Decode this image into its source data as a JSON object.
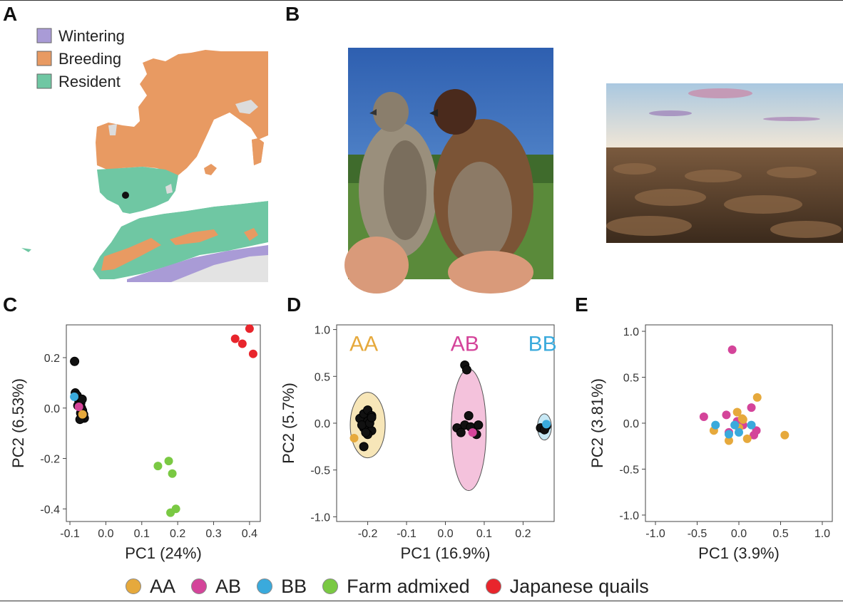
{
  "panels": {
    "a": "A",
    "b": "B",
    "c": "C",
    "d": "D",
    "e": "E"
  },
  "map_legend": [
    {
      "label": "Wintering",
      "color": "#a99bd6"
    },
    {
      "label": "Breeding",
      "color": "#e89a62"
    },
    {
      "label": "Resident",
      "color": "#6fc7a3"
    }
  ],
  "colors": {
    "AA": "#e6a93c",
    "AB": "#d4449a",
    "BB": "#3aaadc",
    "farm": "#7ac943",
    "japanese": "#e8252c",
    "sample": "#111111"
  },
  "bottom_legend": [
    {
      "label": "AA",
      "color": "#e6a93c"
    },
    {
      "label": "AB",
      "color": "#d4449a"
    },
    {
      "label": "BB",
      "color": "#3aaadc"
    },
    {
      "label": "Farm admixed",
      "color": "#7ac943"
    },
    {
      "label": "Japanese quails",
      "color": "#e8252c"
    }
  ],
  "chart_data": [
    {
      "panel": "C",
      "type": "scatter",
      "xlabel": "PC1 (24%)",
      "ylabel": "PC2 (6.53%)",
      "xlim": [
        -0.11,
        0.43
      ],
      "ylim": [
        -0.45,
        0.33
      ],
      "xticks": [
        -0.1,
        0.0,
        0.1,
        0.2,
        0.3,
        0.4
      ],
      "xtick_labels": [
        "-0.1",
        "0.0",
        "0.1",
        "0.2",
        "0.3",
        "0.4"
      ],
      "yticks": [
        0.2,
        0.0,
        -0.2,
        -0.4
      ],
      "ytick_labels": [
        "0.2",
        "0.0",
        "-0.2",
        "-0.4"
      ],
      "series": [
        {
          "group": "sample",
          "points": [
            [
              -0.087,
              0.185
            ],
            [
              -0.085,
              0.06
            ],
            [
              -0.08,
              0.05
            ],
            [
              -0.075,
              0.03
            ],
            [
              -0.07,
              0.02
            ],
            [
              -0.068,
              0.0
            ],
            [
              -0.065,
              -0.01
            ],
            [
              -0.07,
              -0.02
            ],
            [
              -0.065,
              -0.03
            ],
            [
              -0.06,
              -0.04
            ],
            [
              -0.072,
              -0.045
            ],
            [
              -0.062,
              -0.025
            ],
            [
              -0.078,
              0.01
            ],
            [
              -0.066,
              0.035
            ]
          ]
        },
        {
          "group": "BB",
          "points": [
            [
              -0.088,
              0.045
            ]
          ]
        },
        {
          "group": "AB",
          "points": [
            [
              -0.075,
              0.005
            ]
          ]
        },
        {
          "group": "AA",
          "points": [
            [
              -0.065,
              -0.025
            ]
          ]
        },
        {
          "group": "farm",
          "points": [
            [
              0.145,
              -0.23
            ],
            [
              0.175,
              -0.21
            ],
            [
              0.185,
              -0.26
            ],
            [
              0.195,
              -0.4
            ],
            [
              0.18,
              -0.415
            ]
          ]
        },
        {
          "group": "japanese",
          "points": [
            [
              0.36,
              0.275
            ],
            [
              0.38,
              0.255
            ],
            [
              0.4,
              0.315
            ],
            [
              0.41,
              0.215
            ]
          ]
        }
      ]
    },
    {
      "panel": "D",
      "type": "scatter",
      "xlabel": "PC1 (16.9%)",
      "ylabel": "PC2 (5.7%)",
      "xlim": [
        -0.28,
        0.28
      ],
      "ylim": [
        -1.05,
        1.05
      ],
      "xticks": [
        -0.2,
        -0.1,
        0.0,
        0.1,
        0.2
      ],
      "xtick_labels": [
        "-0.2",
        "-0.1",
        "0.0",
        "0.1",
        "0.2"
      ],
      "yticks": [
        1.0,
        0.5,
        0.0,
        -0.5,
        -1.0
      ],
      "ytick_labels": [
        "1.0",
        "0.5",
        "0.0",
        "-0.5",
        "-1.0"
      ],
      "group_labels": [
        {
          "text": "AA",
          "group": "AA",
          "x": -0.21,
          "y": 0.85
        },
        {
          "text": "AB",
          "group": "AB",
          "x": 0.05,
          "y": 0.85
        },
        {
          "text": "BB",
          "group": "BB",
          "x": 0.25,
          "y": 0.85
        }
      ],
      "ellipses": [
        {
          "group": "AA",
          "cx": -0.2,
          "cy": -0.02,
          "rx": 0.045,
          "ry": 0.35
        },
        {
          "group": "AB",
          "cx": 0.06,
          "cy": -0.07,
          "rx": 0.045,
          "ry": 0.65
        },
        {
          "group": "BB",
          "cx": 0.255,
          "cy": -0.04,
          "rx": 0.018,
          "ry": 0.14
        }
      ],
      "series": [
        {
          "group": "sample",
          "points": [
            [
              -0.22,
              0.05
            ],
            [
              -0.21,
              0.1
            ],
            [
              -0.2,
              0.14
            ],
            [
              -0.19,
              0.08
            ],
            [
              -0.2,
              0.02
            ],
            [
              -0.21,
              -0.05
            ],
            [
              -0.19,
              -0.08
            ],
            [
              -0.2,
              -0.12
            ],
            [
              -0.215,
              -0.02
            ],
            [
              -0.195,
              0.0
            ],
            [
              -0.205,
              -0.1
            ],
            [
              -0.21,
              -0.25
            ],
            [
              -0.19,
              0.06
            ],
            [
              0.05,
              0.62
            ],
            [
              0.055,
              0.57
            ],
            [
              0.03,
              -0.05
            ],
            [
              0.05,
              -0.02
            ],
            [
              0.06,
              0.08
            ],
            [
              0.07,
              -0.06
            ],
            [
              0.08,
              -0.12
            ],
            [
              0.04,
              -0.1
            ],
            [
              0.065,
              -0.04
            ],
            [
              0.085,
              -0.02
            ],
            [
              0.245,
              -0.05
            ],
            [
              0.26,
              -0.03
            ],
            [
              0.255,
              -0.07
            ]
          ]
        },
        {
          "group": "AA",
          "points": [
            [
              -0.235,
              -0.16
            ]
          ]
        },
        {
          "group": "AB",
          "points": [
            [
              0.07,
              -0.1
            ]
          ]
        },
        {
          "group": "BB",
          "points": [
            [
              0.26,
              -0.01
            ]
          ]
        }
      ]
    },
    {
      "panel": "E",
      "type": "scatter",
      "xlabel": "PC1 (3.9%)",
      "ylabel": "PC2 (3.81%)",
      "xlim": [
        -1.12,
        1.12
      ],
      "ylim": [
        -1.07,
        1.07
      ],
      "xticks": [
        -1.0,
        -0.5,
        0.0,
        0.5,
        1.0
      ],
      "xtick_labels": [
        "-1.0",
        "-0.5",
        "0.0",
        "0.5",
        "1.0"
      ],
      "yticks": [
        1.0,
        0.5,
        0.0,
        -0.5,
        -1.0
      ],
      "ytick_labels": [
        "1.0",
        "0.5",
        "0.0",
        "-0.5",
        "-1.0"
      ],
      "series": [
        {
          "group": "AB",
          "points": [
            [
              -0.08,
              0.8
            ],
            [
              -0.42,
              0.07
            ],
            [
              -0.15,
              0.09
            ],
            [
              0.15,
              0.17
            ],
            [
              -0.12,
              -0.1
            ],
            [
              0.18,
              -0.13
            ],
            [
              0.21,
              -0.08
            ],
            [
              0.05,
              -0.02
            ],
            [
              -0.02,
              0.02
            ]
          ]
        },
        {
          "group": "AA",
          "points": [
            [
              0.22,
              0.28
            ],
            [
              0.55,
              -0.13
            ],
            [
              -0.3,
              -0.08
            ],
            [
              -0.12,
              -0.19
            ],
            [
              0.1,
              -0.17
            ],
            [
              0.05,
              0.04
            ],
            [
              -0.02,
              0.12
            ],
            [
              0.0,
              -0.05
            ],
            [
              0.04,
              0.05
            ]
          ]
        },
        {
          "group": "BB",
          "points": [
            [
              -0.28,
              -0.02
            ],
            [
              -0.12,
              -0.12
            ],
            [
              0.15,
              -0.02
            ],
            [
              0.0,
              -0.1
            ],
            [
              -0.05,
              -0.02
            ]
          ]
        }
      ]
    }
  ]
}
